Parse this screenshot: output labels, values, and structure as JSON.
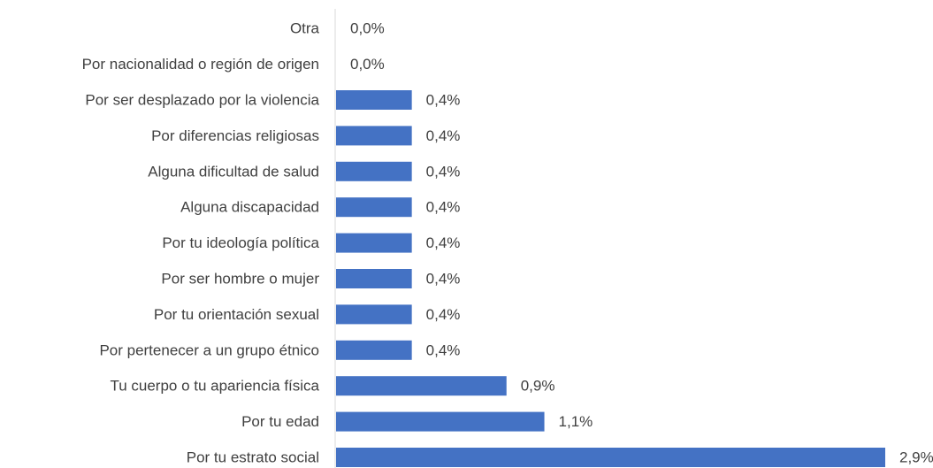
{
  "chart_data": {
    "type": "bar",
    "orientation": "horizontal",
    "categories": [
      "Otra",
      "Por nacionalidad o región de origen",
      "Por ser desplazado por la violencia",
      "Por diferencias religiosas",
      "Alguna dificultad de salud",
      "Alguna discapacidad",
      "Por tu ideología política",
      "Por ser hombre o mujer",
      "Por tu orientación sexual",
      "Por pertenecer a un grupo étnico",
      "Tu cuerpo o tu apariencia física",
      "Por tu edad",
      "Por tu estrato social"
    ],
    "values": [
      0.0,
      0.0,
      0.4,
      0.4,
      0.4,
      0.4,
      0.4,
      0.4,
      0.4,
      0.4,
      0.9,
      1.1,
      2.9
    ],
    "value_labels": [
      "0,0%",
      "0,0%",
      "0,4%",
      "0,4%",
      "0,4%",
      "0,4%",
      "0,4%",
      "0,4%",
      "0,4%",
      "0,4%",
      "0,9%",
      "1,1%",
      "2,9%"
    ],
    "unit": "%",
    "title": "",
    "xlabel": "",
    "ylabel": "",
    "xlim": [
      0,
      2.9
    ],
    "grid": false,
    "legend": "none",
    "bar_color": "#4472C4",
    "axis_color": "#D9D9D9",
    "text_color": "#404040"
  }
}
